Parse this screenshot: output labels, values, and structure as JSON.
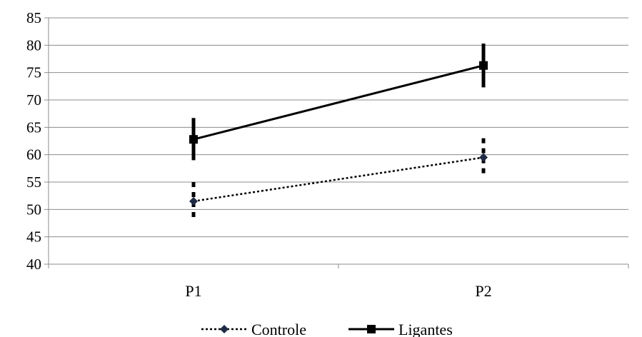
{
  "chart_data": {
    "type": "line",
    "title": "",
    "xlabel": "",
    "ylabel": "",
    "categories": [
      "P1",
      "P2"
    ],
    "ylim": [
      40,
      85
    ],
    "yticks": [
      40,
      45,
      50,
      55,
      60,
      65,
      70,
      75,
      80,
      85
    ],
    "grid": true,
    "legend_position": "bottom",
    "series": [
      {
        "name": "Controle",
        "values": [
          51.5,
          59.5
        ],
        "error_low": [
          48,
          56
        ],
        "error_high": [
          55,
          63
        ],
        "line_style": "dotted",
        "marker": "diamond",
        "color": "#000000",
        "marker_color": "#1f2a44"
      },
      {
        "name": "Ligantes",
        "values": [
          62.8,
          76.3
        ],
        "error_low": [
          59,
          72.3
        ],
        "error_high": [
          66.7,
          80.3
        ],
        "line_style": "solid",
        "marker": "square",
        "color": "#000000",
        "marker_color": "#000000"
      }
    ]
  }
}
